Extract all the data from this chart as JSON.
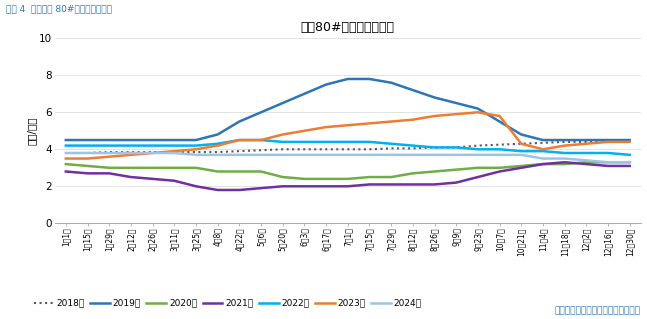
{
  "title": "栖霞80#一二级价格走势",
  "suptitle": "图表 4  栖霞纸袋 80#一二级均价走势",
  "ylabel": "（元/斤）",
  "source": "数据来源：我的农产品网、国元期货",
  "ylim": [
    0,
    10
  ],
  "yticks": [
    0,
    2,
    4,
    6,
    8,
    10
  ],
  "background": "#ffffff",
  "x_labels": [
    "1月1日",
    "1月15日",
    "1月29日",
    "2月12日",
    "2月26日",
    "3月11日",
    "3月25日",
    "4月8日",
    "4月22日",
    "5月6日",
    "5月20日",
    "6月3日",
    "6月17日",
    "7月1日",
    "7月15日",
    "7月29日",
    "8月12日",
    "8月26日",
    "9月9日",
    "9月23日",
    "10月7日",
    "10月21日",
    "11月4日",
    "11月18日",
    "12月2日",
    "12月16日",
    "12月30日"
  ],
  "series": {
    "2018年": {
      "color": "#595959",
      "linestyle": "dotted",
      "linewidth": 1.5,
      "data": [
        3.8,
        3.8,
        3.85,
        3.85,
        3.85,
        3.85,
        3.85,
        3.85,
        3.9,
        3.95,
        4.0,
        4.0,
        4.0,
        4.0,
        4.0,
        4.05,
        4.05,
        4.1,
        4.1,
        4.2,
        4.25,
        4.3,
        4.35,
        4.4,
        4.4,
        4.45,
        4.5
      ]
    },
    "2019年": {
      "color": "#2e75b6",
      "linestyle": "solid",
      "linewidth": 1.8,
      "data": [
        4.5,
        4.5,
        4.5,
        4.5,
        4.5,
        4.5,
        4.5,
        4.8,
        5.5,
        6.0,
        6.5,
        7.0,
        7.5,
        7.8,
        7.8,
        7.6,
        7.2,
        6.8,
        6.5,
        6.2,
        5.5,
        4.8,
        4.5,
        4.5,
        4.5,
        4.5,
        4.5
      ]
    },
    "2020年": {
      "color": "#70ad47",
      "linestyle": "solid",
      "linewidth": 1.8,
      "data": [
        3.2,
        3.1,
        3.0,
        3.0,
        3.0,
        3.0,
        3.0,
        2.8,
        2.8,
        2.8,
        2.5,
        2.4,
        2.4,
        2.4,
        2.5,
        2.5,
        2.7,
        2.8,
        2.9,
        3.0,
        3.0,
        3.1,
        3.2,
        3.2,
        3.3,
        3.3,
        3.3
      ]
    },
    "2021年": {
      "color": "#7030a0",
      "linestyle": "solid",
      "linewidth": 1.8,
      "data": [
        2.8,
        2.7,
        2.7,
        2.5,
        2.4,
        2.3,
        2.0,
        1.8,
        1.8,
        1.9,
        2.0,
        2.0,
        2.0,
        2.0,
        2.1,
        2.1,
        2.1,
        2.1,
        2.2,
        2.5,
        2.8,
        3.0,
        3.2,
        3.3,
        3.2,
        3.1,
        3.1
      ]
    },
    "2022年": {
      "color": "#00b0f0",
      "linestyle": "solid",
      "linewidth": 1.8,
      "data": [
        4.2,
        4.2,
        4.2,
        4.2,
        4.2,
        4.2,
        4.2,
        4.3,
        4.5,
        4.5,
        4.4,
        4.4,
        4.4,
        4.4,
        4.4,
        4.3,
        4.2,
        4.1,
        4.1,
        4.0,
        4.0,
        3.9,
        3.9,
        3.8,
        3.8,
        3.8,
        3.7
      ]
    },
    "2023年": {
      "color": "#ed7d31",
      "linestyle": "solid",
      "linewidth": 1.8,
      "data": [
        3.5,
        3.5,
        3.6,
        3.7,
        3.8,
        3.9,
        4.0,
        4.2,
        4.5,
        4.5,
        4.8,
        5.0,
        5.2,
        5.3,
        5.4,
        5.5,
        5.6,
        5.8,
        5.9,
        6.0,
        5.8,
        4.3,
        4.0,
        4.2,
        4.3,
        4.4,
        4.4
      ]
    },
    "2024年": {
      "color": "#9dc3e6",
      "linestyle": "solid",
      "linewidth": 1.8,
      "data": [
        3.8,
        3.8,
        3.8,
        3.8,
        3.8,
        3.8,
        3.7,
        3.7,
        3.7,
        3.7,
        3.7,
        3.7,
        3.7,
        3.7,
        3.7,
        3.7,
        3.7,
        3.7,
        3.7,
        3.7,
        3.7,
        3.7,
        3.5,
        3.5,
        3.4,
        3.3,
        3.3
      ]
    }
  }
}
